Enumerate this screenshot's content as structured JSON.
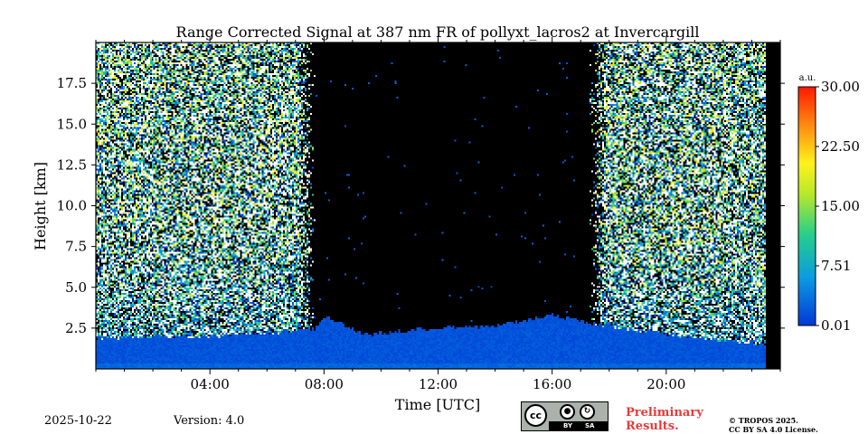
{
  "chart_data": {
    "type": "heatmap",
    "title": "Range Corrected Signal at 387 nm FR of pollyxt_lacros2 at Invercargill",
    "xlabel": "Time [UTC]",
    "ylabel": "Height [km]",
    "x_ticks": [
      "04:00",
      "08:00",
      "12:00",
      "16:00",
      "20:00"
    ],
    "x_tick_hours": [
      4,
      8,
      12,
      16,
      20
    ],
    "x_range_hours": [
      0,
      24
    ],
    "data_end_hour": 23.5,
    "y_ticks": [
      "2.5",
      "5.0",
      "7.5",
      "10.0",
      "12.5",
      "15.0",
      "17.5"
    ],
    "y_tick_values": [
      2.5,
      5.0,
      7.5,
      10.0,
      12.5,
      15.0,
      17.5
    ],
    "y_range_km": [
      0,
      20
    ],
    "colorbar": {
      "unit": "a.u.",
      "tick_labels": [
        "0.01",
        "7.51",
        "15.00",
        "22.50",
        "30.00"
      ],
      "tick_values": [
        0.01,
        7.51,
        15.0,
        22.5,
        30.0
      ],
      "range": [
        0.01,
        30.0
      ]
    },
    "signal_regimes": [
      {
        "period": "00:00-07:40",
        "description": "night, strong noisy signal up to 20 km"
      },
      {
        "period": "07:40-17:20",
        "description": "daytime, signal only in boundary layer up to about 3 km"
      },
      {
        "period": "17:20-23:30",
        "description": "night, strong noisy signal up to 20 km"
      }
    ],
    "boundary_layer_top_km": [
      {
        "hour": 0,
        "km": 1.9
      },
      {
        "hour": 4,
        "km": 2.0
      },
      {
        "hour": 7.7,
        "km": 2.4
      },
      {
        "hour": 8,
        "km": 3.2
      },
      {
        "hour": 9.5,
        "km": 2.1
      },
      {
        "hour": 12,
        "km": 2.5
      },
      {
        "hour": 14,
        "km": 2.6
      },
      {
        "hour": 16,
        "km": 3.3
      },
      {
        "hour": 17.3,
        "km": 2.8
      },
      {
        "hour": 20,
        "km": 2.1
      },
      {
        "hour": 23.5,
        "km": 1.5
      }
    ]
  },
  "footer": {
    "date": "2025-10-22",
    "version": "Version: 4.0",
    "preliminary_line1": "Preliminary",
    "preliminary_line2": "Results.",
    "copyright_line1": "© TROPOS 2025.",
    "copyright_line2": "CC BY SA 4.0 License.",
    "cc_badge": {
      "cc": "cc",
      "by": "BY",
      "sa": "SA"
    }
  },
  "colors": {
    "background": "#000000",
    "low": "#0a3fd6",
    "high": "#ff2000"
  }
}
